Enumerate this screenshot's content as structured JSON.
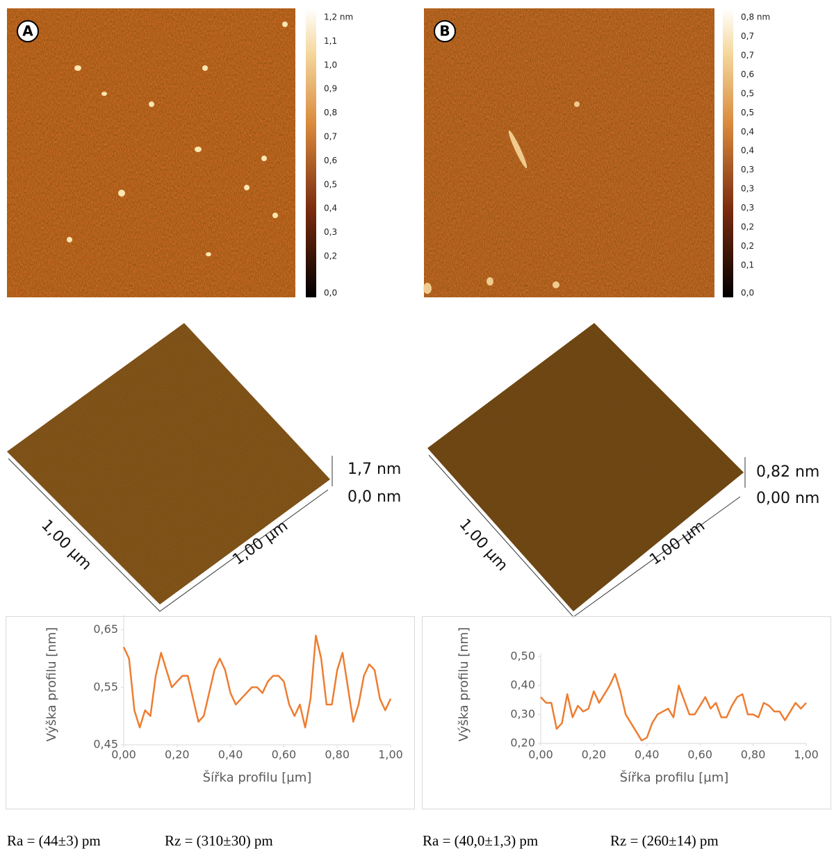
{
  "panels": [
    {
      "label": "A",
      "colorbar_labels": [
        "1,2 nm",
        "1,1",
        "1,0",
        "0,9",
        "0,8",
        "0,7",
        "0,6",
        "0,5",
        "0,4",
        "0,3",
        "0,2",
        "0,0"
      ],
      "surface": {
        "z_top": "1,7 nm",
        "z_bottom": "0,0 nm",
        "x_extent": "1,00 µm",
        "y_extent": "1,00 µm"
      },
      "ra": "Ra = (44±3) pm",
      "rz": "Rz = (310±30) pm"
    },
    {
      "label": "B",
      "colorbar_labels": [
        "0,8 nm",
        "0,7",
        "0,7",
        "0,6",
        "0,5",
        "0,5",
        "0,4",
        "0,4",
        "0,3",
        "0,3",
        "0,3",
        "0,2",
        "0,2",
        "0,1",
        "0,0"
      ],
      "surface": {
        "z_top": "0,82 nm",
        "z_bottom": "0,00 nm",
        "x_extent": "1,00 µm",
        "y_extent": "1,00 µm"
      },
      "ra": "Ra = (40,0±1,3) pm",
      "rz": "Rz = (260±14) pm"
    }
  ],
  "chart_data": [
    {
      "type": "line",
      "x_label": "Šířka profilu [µm]",
      "y_label": "Výška profilu [nm]",
      "x": [
        0,
        0.02,
        0.04,
        0.06,
        0.08,
        0.1,
        0.12,
        0.14,
        0.16,
        0.18,
        0.2,
        0.22,
        0.24,
        0.26,
        0.28,
        0.3,
        0.32,
        0.34,
        0.36,
        0.38,
        0.4,
        0.42,
        0.44,
        0.46,
        0.48,
        0.5,
        0.52,
        0.54,
        0.56,
        0.58,
        0.6,
        0.62,
        0.64,
        0.66,
        0.68,
        0.7,
        0.72,
        0.74,
        0.76,
        0.78,
        0.8,
        0.82,
        0.84,
        0.86,
        0.88,
        0.9,
        0.92,
        0.94,
        0.96,
        0.98,
        1
      ],
      "series": [
        {
          "color": "#ed7d31",
          "values": [
            0.62,
            0.6,
            0.51,
            0.48,
            0.51,
            0.5,
            0.57,
            0.61,
            0.58,
            0.55,
            0.56,
            0.57,
            0.57,
            0.53,
            0.49,
            0.5,
            0.54,
            0.58,
            0.6,
            0.58,
            0.54,
            0.52,
            0.53,
            0.54,
            0.55,
            0.55,
            0.54,
            0.56,
            0.57,
            0.57,
            0.56,
            0.52,
            0.5,
            0.52,
            0.48,
            0.53,
            0.64,
            0.6,
            0.52,
            0.52,
            0.58,
            0.61,
            0.55,
            0.49,
            0.52,
            0.57,
            0.59,
            0.58,
            0.53,
            0.51,
            0.53
          ]
        }
      ],
      "xlim": [
        0,
        1
      ],
      "xticks": [
        {
          "value": 0,
          "label": "0,00"
        },
        {
          "value": 0.2,
          "label": "0,20"
        },
        {
          "value": 0.4,
          "label": "0,40"
        },
        {
          "value": 0.6,
          "label": "0,60"
        },
        {
          "value": 0.8,
          "label": "0,80"
        },
        {
          "value": 1,
          "label": "1,00"
        }
      ],
      "ylim": [
        0.45,
        0.67
      ],
      "yticks": [
        {
          "value": 0.45,
          "label": "0,45"
        },
        {
          "value": 0.55,
          "label": "0,55"
        },
        {
          "value": 0.65,
          "label": "0,65"
        }
      ]
    },
    {
      "type": "line",
      "x_label": "Šířka profilu [µm]",
      "y_label": "Výška profilu [nm]",
      "x": [
        0,
        0.02,
        0.04,
        0.06,
        0.08,
        0.1,
        0.12,
        0.14,
        0.16,
        0.18,
        0.2,
        0.22,
        0.24,
        0.26,
        0.28,
        0.3,
        0.32,
        0.34,
        0.36,
        0.38,
        0.4,
        0.42,
        0.44,
        0.46,
        0.48,
        0.5,
        0.52,
        0.54,
        0.56,
        0.58,
        0.6,
        0.62,
        0.64,
        0.66,
        0.68,
        0.7,
        0.72,
        0.74,
        0.76,
        0.78,
        0.8,
        0.82,
        0.84,
        0.86,
        0.88,
        0.9,
        0.92,
        0.94,
        0.96,
        0.98,
        1
      ],
      "series": [
        {
          "color": "#ed7d31",
          "values": [
            0.36,
            0.34,
            0.34,
            0.25,
            0.27,
            0.37,
            0.29,
            0.33,
            0.31,
            0.32,
            0.38,
            0.34,
            0.37,
            0.4,
            0.44,
            0.38,
            0.3,
            0.27,
            0.24,
            0.21,
            0.22,
            0.27,
            0.3,
            0.31,
            0.32,
            0.29,
            0.4,
            0.35,
            0.3,
            0.3,
            0.33,
            0.36,
            0.32,
            0.34,
            0.29,
            0.29,
            0.33,
            0.36,
            0.37,
            0.3,
            0.3,
            0.29,
            0.34,
            0.33,
            0.31,
            0.31,
            0.28,
            0.31,
            0.34,
            0.32,
            0.34
          ]
        }
      ],
      "xlim": [
        0,
        1
      ],
      "xticks": [
        {
          "value": 0,
          "label": "0,00"
        },
        {
          "value": 0.2,
          "label": "0,20"
        },
        {
          "value": 0.4,
          "label": "0,40"
        },
        {
          "value": 0.6,
          "label": "0,60"
        },
        {
          "value": 0.8,
          "label": "0,80"
        },
        {
          "value": 1,
          "label": "1,00"
        }
      ],
      "ylim": [
        0.2,
        0.5
      ],
      "yticks": [
        {
          "value": 0.2,
          "label": "0,20"
        },
        {
          "value": 0.3,
          "label": "0,30"
        },
        {
          "value": 0.4,
          "label": "0,40"
        },
        {
          "value": 0.5,
          "label": "0,50"
        }
      ]
    }
  ]
}
